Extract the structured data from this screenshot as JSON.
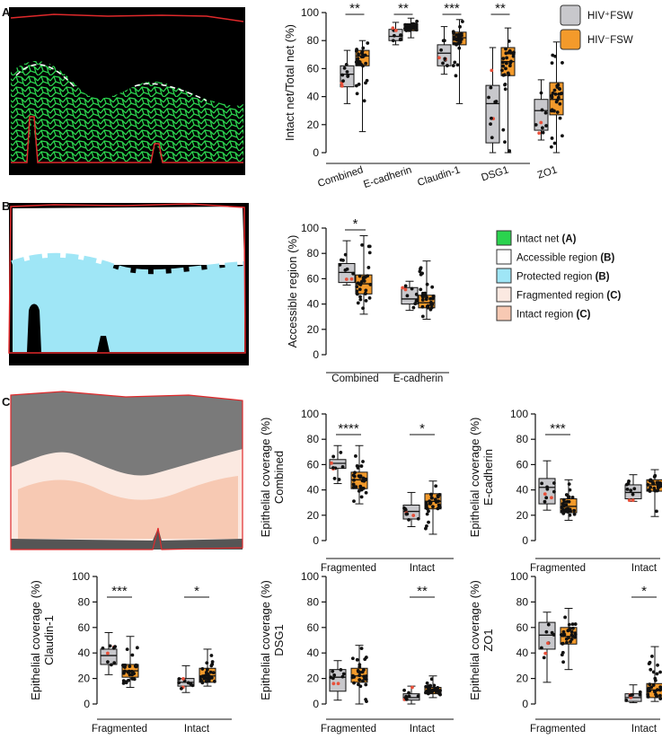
{
  "panel_labels": [
    "A",
    "B",
    "C"
  ],
  "colors": {
    "hiv_pos": "#c8c8cc",
    "hiv_neg": "#f39a2b",
    "highlight": "#e8503a",
    "intact_net": "#2bd34e",
    "accessible": "#ffffff",
    "protected": "#9fe6f6",
    "fragmented": "#fbe9e1",
    "intact_region": "#f7c9b3",
    "tissue_border": "#e0292b",
    "stroma": "#7a7a7a"
  },
  "legend_groups": [
    {
      "label": "HIV⁺FSW",
      "color": "#c8c8cc"
    },
    {
      "label": "HIV⁻FSW",
      "color": "#f39a2b"
    }
  ],
  "legend_regions": [
    {
      "text": "Intact net",
      "tag": "(A)",
      "color": "#2bd34e"
    },
    {
      "text": "Accessible region",
      "tag": "(B)",
      "color": "#ffffff"
    },
    {
      "text": "Protected region",
      "tag": "(B)",
      "color": "#9fe6f6"
    },
    {
      "text": "Fragmented region",
      "tag": "(C)",
      "color": "#fbe9e1"
    },
    {
      "text": "Intact region",
      "tag": "(C)",
      "color": "#f7c9b3"
    }
  ],
  "chart_data": [
    {
      "id": "A",
      "type": "box",
      "ylabel": "Intact net/Total net (%)",
      "ylim": [
        0,
        100
      ],
      "yticks": [
        0,
        20,
        40,
        60,
        80,
        100
      ],
      "categories": [
        "Combined",
        "E-cadherin",
        "Claudin-1",
        "DSG1",
        "ZO1"
      ],
      "series": [
        {
          "name": "HIV⁺FSW",
          "stats": [
            {
              "min": 35,
              "q1": 47,
              "median": 56,
              "q3": 62,
              "max": 73
            },
            {
              "min": 77,
              "q1": 80,
              "median": 83,
              "q3": 88,
              "max": 93
            },
            {
              "min": 56,
              "q1": 62,
              "median": 71,
              "q3": 77,
              "max": 90
            },
            {
              "min": 0,
              "q1": 7,
              "median": 35,
              "q3": 48,
              "max": 75
            },
            {
              "min": 9,
              "q1": 16,
              "median": 30,
              "q3": 38,
              "max": 52
            }
          ]
        },
        {
          "name": "HIV⁻FSW",
          "stats": [
            {
              "min": 15,
              "q1": 62,
              "median": 69,
              "q3": 73,
              "max": 80
            },
            {
              "min": 82,
              "q1": 87,
              "median": 90,
              "q3": 92,
              "max": 96
            },
            {
              "min": 35,
              "q1": 77,
              "median": 82,
              "q3": 86,
              "max": 95
            },
            {
              "min": 0,
              "q1": 55,
              "median": 65,
              "q3": 75,
              "max": 89
            },
            {
              "min": 0,
              "q1": 27,
              "median": 38,
              "q3": 50,
              "max": 79
            }
          ]
        }
      ],
      "significance": [
        {
          "category": "Combined",
          "label": "**"
        },
        {
          "category": "E-cadherin",
          "label": "**"
        },
        {
          "category": "Claudin-1",
          "label": "***"
        },
        {
          "category": "DSG1",
          "label": "**"
        }
      ]
    },
    {
      "id": "B",
      "type": "box",
      "ylabel": "Accessible region (%)",
      "ylim": [
        0,
        100
      ],
      "yticks": [
        0,
        20,
        40,
        60,
        80,
        100
      ],
      "categories": [
        "Combined",
        "E-cadherin"
      ],
      "series": [
        {
          "name": "HIV⁺FSW",
          "stats": [
            {
              "min": 55,
              "q1": 57,
              "median": 65,
              "q3": 72,
              "max": 90
            },
            {
              "min": 35,
              "q1": 40,
              "median": 44,
              "q3": 53,
              "max": 58
            }
          ]
        },
        {
          "name": "HIV⁻FSW",
          "stats": [
            {
              "min": 32,
              "q1": 48,
              "median": 56,
              "q3": 63,
              "max": 94
            },
            {
              "min": 28,
              "q1": 37,
              "median": 41,
              "q3": 47,
              "max": 74
            }
          ]
        }
      ],
      "significance": [
        {
          "category": "Combined",
          "label": "*"
        }
      ]
    },
    {
      "id": "C-combined",
      "type": "box",
      "ylabel": "Epithelial coverage (%)",
      "ylabel2": "Combined",
      "ylim": [
        0,
        100
      ],
      "yticks": [
        0,
        20,
        40,
        60,
        80,
        100
      ],
      "categories": [
        "Fragmented",
        "Intact"
      ],
      "series": [
        {
          "name": "HIV⁺FSW",
          "stats": [
            {
              "min": 45,
              "q1": 57,
              "median": 61,
              "q3": 64,
              "max": 75
            },
            {
              "min": 11,
              "q1": 17,
              "median": 23,
              "q3": 28,
              "max": 38
            }
          ]
        },
        {
          "name": "HIV⁻FSW",
          "stats": [
            {
              "min": 29,
              "q1": 41,
              "median": 48,
              "q3": 54,
              "max": 75
            },
            {
              "min": 5,
              "q1": 25,
              "median": 31,
              "q3": 37,
              "max": 47
            }
          ]
        }
      ],
      "significance": [
        {
          "category": "Fragmented",
          "label": "****"
        },
        {
          "category": "Intact",
          "label": "*"
        }
      ]
    },
    {
      "id": "C-ecadherin",
      "type": "box",
      "ylabel": "Epithelial coverage (%)",
      "ylabel2": "E-cadherin",
      "ylim": [
        0,
        100
      ],
      "yticks": [
        0,
        20,
        40,
        60,
        80,
        100
      ],
      "categories": [
        "Fragmented",
        "Intact"
      ],
      "series": [
        {
          "name": "HIV⁺FSW",
          "stats": [
            {
              "min": 24,
              "q1": 29,
              "median": 42,
              "q3": 49,
              "max": 63
            },
            {
              "min": 31,
              "q1": 33,
              "median": 38,
              "q3": 44,
              "max": 52
            }
          ]
        },
        {
          "name": "HIV⁻FSW",
          "stats": [
            {
              "min": 16,
              "q1": 22,
              "median": 27,
              "q3": 33,
              "max": 48
            },
            {
              "min": 19,
              "q1": 39,
              "median": 44,
              "q3": 48,
              "max": 56
            }
          ]
        }
      ],
      "significance": [
        {
          "category": "Fragmented",
          "label": "***"
        }
      ]
    },
    {
      "id": "C-claudin1",
      "type": "box",
      "ylabel": "Epithelial coverage (%)",
      "ylabel2": "Claudin-1",
      "ylim": [
        0,
        100
      ],
      "yticks": [
        0,
        20,
        40,
        60,
        80,
        100
      ],
      "categories": [
        "Fragmented",
        "Intact"
      ],
      "series": [
        {
          "name": "HIV⁺FSW",
          "stats": [
            {
              "min": 23,
              "q1": 31,
              "median": 38,
              "q3": 43,
              "max": 56
            },
            {
              "min": 9,
              "q1": 14,
              "median": 17,
              "q3": 20,
              "max": 30
            }
          ]
        },
        {
          "name": "HIV⁻FSW",
          "stats": [
            {
              "min": 13,
              "q1": 21,
              "median": 26,
              "q3": 31,
              "max": 53
            },
            {
              "min": 14,
              "q1": 17,
              "median": 22,
              "q3": 28,
              "max": 43
            }
          ]
        }
      ],
      "significance": [
        {
          "category": "Fragmented",
          "label": "***"
        },
        {
          "category": "Intact",
          "label": "*"
        }
      ]
    },
    {
      "id": "C-dsg1",
      "type": "box",
      "ylabel": "Epithelial coverage (%)",
      "ylabel2": "DSG1",
      "ylim": [
        0,
        100
      ],
      "yticks": [
        0,
        20,
        40,
        60,
        80,
        100
      ],
      "categories": [
        "Fragmented",
        "Intact"
      ],
      "series": [
        {
          "name": "HIV⁺FSW",
          "stats": [
            {
              "min": 3,
              "q1": 10,
              "median": 21,
              "q3": 27,
              "max": 34
            },
            {
              "min": 0,
              "q1": 3,
              "median": 5,
              "q3": 8,
              "max": 14
            }
          ]
        },
        {
          "name": "HIV⁻FSW",
          "stats": [
            {
              "min": 0,
              "q1": 17,
              "median": 22,
              "q3": 28,
              "max": 46
            },
            {
              "min": 5,
              "q1": 8,
              "median": 10,
              "q3": 13,
              "max": 22
            }
          ]
        }
      ],
      "significance": [
        {
          "category": "Intact",
          "label": "**"
        }
      ]
    },
    {
      "id": "C-zo1",
      "type": "box",
      "ylabel": "Epithelial coverage (%)",
      "ylabel2": "ZO1",
      "ylim": [
        0,
        100
      ],
      "yticks": [
        0,
        20,
        40,
        60,
        80,
        100
      ],
      "categories": [
        "Fragmented",
        "Intact"
      ],
      "series": [
        {
          "name": "HIV⁺FSW",
          "stats": [
            {
              "min": 17,
              "q1": 43,
              "median": 54,
              "q3": 64,
              "max": 72
            },
            {
              "min": 1,
              "q1": 2,
              "median": 5,
              "q3": 8,
              "max": 15
            }
          ]
        },
        {
          "name": "HIV⁻FSW",
          "stats": [
            {
              "min": 27,
              "q1": 47,
              "median": 53,
              "q3": 60,
              "max": 75
            },
            {
              "min": 2,
              "q1": 5,
              "median": 11,
              "q3": 16,
              "max": 45
            }
          ]
        }
      ],
      "significance": [
        {
          "category": "Intact",
          "label": "*"
        }
      ]
    }
  ]
}
